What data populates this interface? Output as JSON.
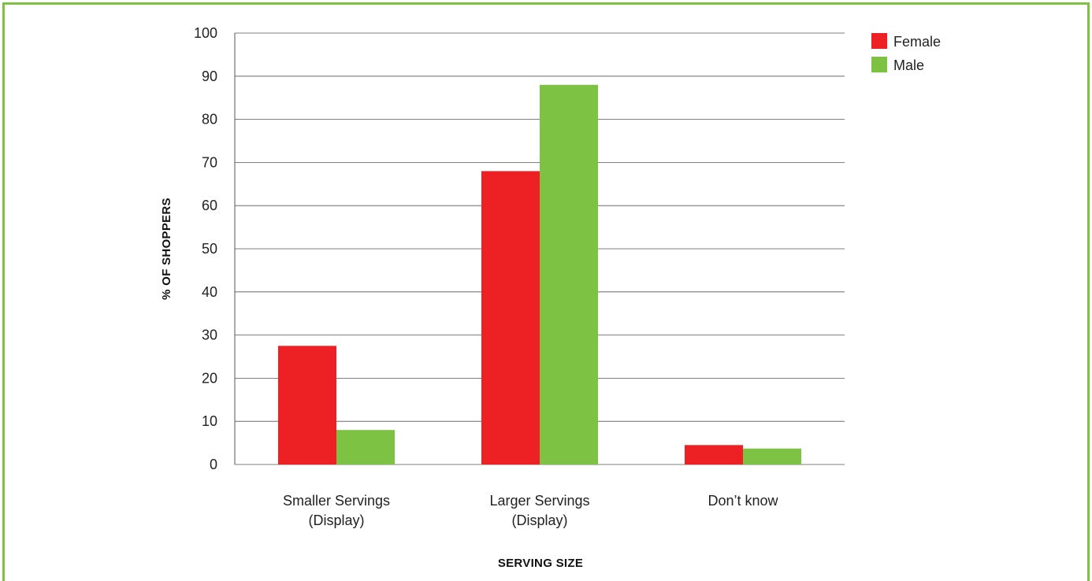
{
  "chart_data": {
    "type": "bar",
    "xlabel": "SERVING SIZE",
    "ylabel": "% OF SHOPPERS",
    "ylim": [
      0,
      100
    ],
    "yticks": [
      0,
      10,
      20,
      30,
      40,
      50,
      60,
      70,
      80,
      90,
      100
    ],
    "categories": [
      [
        "Smaller Servings",
        "(Display)"
      ],
      [
        "Larger Servings",
        "(Display)"
      ],
      [
        "Don’t know"
      ]
    ],
    "series": [
      {
        "name": "Female",
        "color": "#ed2024",
        "values": [
          27.5,
          68,
          4.5
        ]
      },
      {
        "name": "Male",
        "color": "#7dc242",
        "values": [
          8,
          88,
          3.7
        ]
      }
    ],
    "grid": true,
    "legend_position": "top-right"
  },
  "frame_color": "#7dc242"
}
